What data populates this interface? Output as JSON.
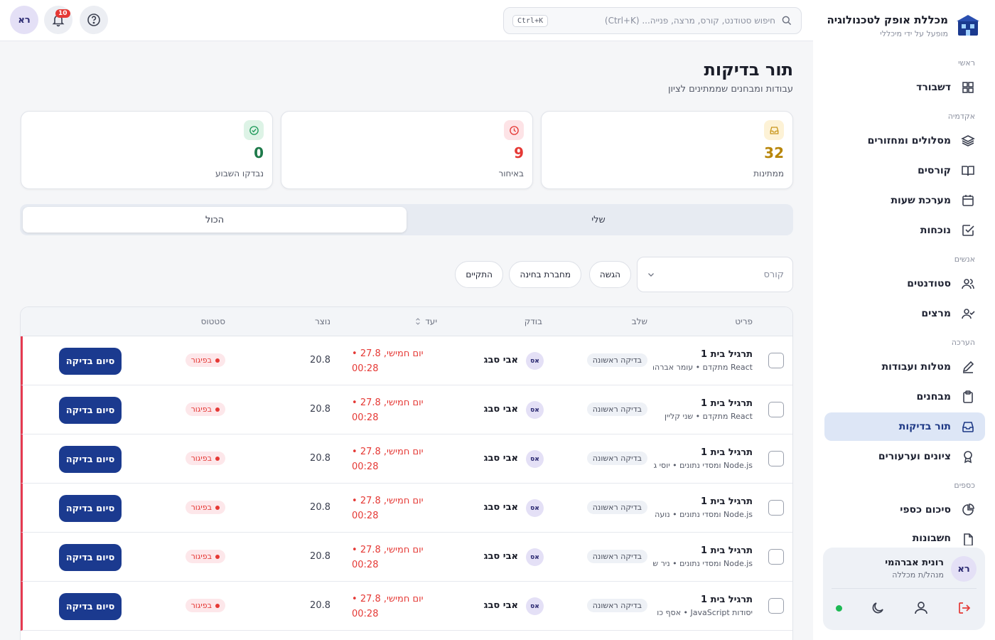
{
  "brand": {
    "title": "מכללת אופק לטכנולוגיה",
    "subtitle": "מופעל על ידי מיכללי"
  },
  "sidebar": {
    "sections": {
      "main": "ראשי",
      "academy": "אקדמיה",
      "people": "אנשים",
      "evaluation": "הערכה",
      "finance": "כספים"
    },
    "items": [
      {
        "label": "דשבורד",
        "icon": "grid-icon"
      },
      {
        "label": "מסלולים ומחזורים",
        "icon": "layers-icon"
      },
      {
        "label": "קורסים",
        "icon": "book-icon"
      },
      {
        "label": "מערכת שעות",
        "icon": "calendar-icon"
      },
      {
        "label": "נוכחות",
        "icon": "check-square-icon"
      },
      {
        "label": "סטודנטים",
        "icon": "users-icon"
      },
      {
        "label": "מרצים",
        "icon": "user-check-icon"
      },
      {
        "label": "מטלות ועבודות",
        "icon": "pen-icon"
      },
      {
        "label": "מבחנים",
        "icon": "clipboard-icon"
      },
      {
        "label": "תור בדיקות",
        "icon": "inbox-icon",
        "active": true
      },
      {
        "label": "ציונים וערעורים",
        "icon": "award-icon"
      },
      {
        "label": "סיכום כספי",
        "icon": "pie-icon"
      },
      {
        "label": "חשבונות",
        "icon": "file-icon"
      }
    ],
    "user": {
      "initials": "רא",
      "name": "רונית אברהמי",
      "role": "מנהל/ת מכללה"
    }
  },
  "topbar": {
    "search_placeholder": "חיפוש סטודנט, קורס, מרצה, פנייה... (Ctrl+K)",
    "shortcut": "Ctrl+K",
    "notifications_count": "10",
    "avatar_initials": "רא"
  },
  "page": {
    "title": "תור בדיקות",
    "subtitle": "עבודות ומבחנים שממתינים לציון"
  },
  "stats": [
    {
      "value": "32",
      "label": "ממתינות",
      "color": "#b8860b"
    },
    {
      "value": "9",
      "label": "באיחור",
      "color": "#e53935"
    },
    {
      "value": "0",
      "label": "נבדקו השבוע",
      "color": "#1e7a4a"
    }
  ],
  "tabs": {
    "mine": "שלי",
    "all": "הכול"
  },
  "filters": {
    "course_placeholder": "קורס",
    "chips": [
      "הגשה",
      "מחברת בחינה",
      "התקיים"
    ]
  },
  "table": {
    "headers": {
      "item": "פריט",
      "stage": "שלב",
      "examiner": "בודק",
      "due": "יעד",
      "created": "נוצר",
      "status": "סטטוס"
    },
    "rows": [
      {
        "title": "תרגיל בית 1",
        "sub": "React מתקדם • עומר אברהם",
        "stage": "בדיקה ראשונה",
        "examiner_initials": "אס",
        "examiner": "אבי סבג",
        "due_line1": "יום חמישי, 27.8 •",
        "due_line2": "00:28",
        "created": "20.8",
        "status": "בפיגור",
        "action": "סיום בדיקה"
      },
      {
        "title": "תרגיל בית 1",
        "sub": "React מתקדם • שני קליין",
        "stage": "בדיקה ראשונה",
        "examiner_initials": "אס",
        "examiner": "אבי סבג",
        "due_line1": "יום חמישי, 27.8 •",
        "due_line2": "00:28",
        "created": "20.8",
        "status": "בפיגור",
        "action": "סיום בדיקה"
      },
      {
        "title": "תרגיל בית 1",
        "sub": "Node.js ומסדי נתונים • יוסי ג",
        "stage": "בדיקה ראשונה",
        "examiner_initials": "אס",
        "examiner": "אבי סבג",
        "due_line1": "יום חמישי, 27.8 •",
        "due_line2": "00:28",
        "created": "20.8",
        "status": "בפיגור",
        "action": "סיום בדיקה"
      },
      {
        "title": "תרגיל בית 1",
        "sub": "Node.js ומסדי נתונים • נועה",
        "stage": "בדיקה ראשונה",
        "examiner_initials": "אס",
        "examiner": "אבי סבג",
        "due_line1": "יום חמישי, 27.8 •",
        "due_line2": "00:28",
        "created": "20.8",
        "status": "בפיגור",
        "action": "סיום בדיקה"
      },
      {
        "title": "תרגיל בית 1",
        "sub": "Node.js ומסדי נתונים • ניר ש",
        "stage": "בדיקה ראשונה",
        "examiner_initials": "אס",
        "examiner": "אבי סבג",
        "due_line1": "יום חמישי, 27.8 •",
        "due_line2": "00:28",
        "created": "20.8",
        "status": "בפיגור",
        "action": "סיום בדיקה"
      },
      {
        "title": "תרגיל בית 1",
        "sub": "יסודות JavaScript • אסף כו",
        "stage": "בדיקה ראשונה",
        "examiner_initials": "אס",
        "examiner": "אבי סבג",
        "due_line1": "יום חמישי, 27.8 •",
        "due_line2": "00:28",
        "created": "20.8",
        "status": "בפיגור",
        "action": "סיום בדיקה"
      }
    ]
  }
}
